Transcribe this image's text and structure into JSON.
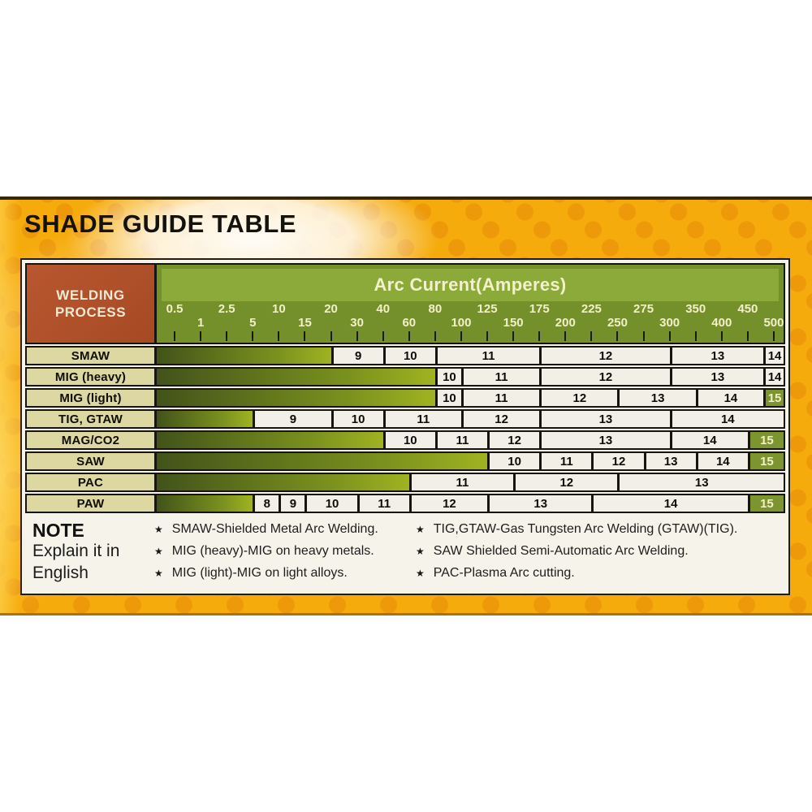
{
  "title": "SHADE GUIDE TABLE",
  "chart_data": {
    "type": "table",
    "title": "SHADE GUIDE TABLE",
    "process_header_lines": [
      "WELDING",
      "PROCESS"
    ],
    "x_axis": {
      "label": "Arc Current(Amperes)",
      "ticks": [
        0.5,
        1,
        2.5,
        5,
        10,
        15,
        20,
        30,
        40,
        60,
        80,
        100,
        125,
        150,
        175,
        200,
        225,
        250,
        275,
        300,
        350,
        400,
        450,
        500
      ],
      "scale": "evenly-spaced ticks",
      "range": [
        0.5,
        500
      ]
    },
    "rows": [
      {
        "process": "SMAW",
        "bar_to": 20,
        "segments": [
          {
            "shade": "9",
            "from": 20,
            "to": 40
          },
          {
            "shade": "10",
            "from": 40,
            "to": 80
          },
          {
            "shade": "11",
            "from": 80,
            "to": 175
          },
          {
            "shade": "12",
            "from": 175,
            "to": 300
          },
          {
            "shade": "13",
            "from": 300,
            "to": 480
          },
          {
            "shade": "14",
            "from": 480,
            "to": 500,
            "edge": true
          }
        ]
      },
      {
        "process": "MIG (heavy)",
        "bar_to": 80,
        "segments": [
          {
            "shade": "10",
            "from": 80,
            "to": 100
          },
          {
            "shade": "11",
            "from": 100,
            "to": 175
          },
          {
            "shade": "12",
            "from": 175,
            "to": 300
          },
          {
            "shade": "13",
            "from": 300,
            "to": 480
          },
          {
            "shade": "14",
            "from": 480,
            "to": 500,
            "edge": true
          }
        ]
      },
      {
        "process": "MIG (light)",
        "bar_to": 80,
        "segments": [
          {
            "shade": "10",
            "from": 80,
            "to": 100
          },
          {
            "shade": "11",
            "from": 100,
            "to": 175
          },
          {
            "shade": "12",
            "from": 175,
            "to": 250
          },
          {
            "shade": "13",
            "from": 250,
            "to": 350
          },
          {
            "shade": "14",
            "from": 350,
            "to": 480
          },
          {
            "shade": "15",
            "from": 480,
            "to": 500,
            "edge": true,
            "green": true
          }
        ]
      },
      {
        "process": "TIG, GTAW",
        "bar_to": 5,
        "segments": [
          {
            "shade": "9",
            "from": 5,
            "to": 20
          },
          {
            "shade": "10",
            "from": 20,
            "to": 40
          },
          {
            "shade": "11",
            "from": 40,
            "to": 100
          },
          {
            "shade": "12",
            "from": 100,
            "to": 175
          },
          {
            "shade": "13",
            "from": 175,
            "to": 300
          },
          {
            "shade": "14",
            "from": 300,
            "to": 500,
            "edge": true
          }
        ]
      },
      {
        "process": "MAG/CO2",
        "bar_to": 40,
        "segments": [
          {
            "shade": "10",
            "from": 40,
            "to": 80
          },
          {
            "shade": "11",
            "from": 80,
            "to": 125
          },
          {
            "shade": "12",
            "from": 125,
            "to": 175
          },
          {
            "shade": "13",
            "from": 175,
            "to": 300
          },
          {
            "shade": "14",
            "from": 300,
            "to": 450
          },
          {
            "shade": "15",
            "from": 450,
            "to": 500,
            "edge": true,
            "green": true
          }
        ]
      },
      {
        "process": "SAW",
        "bar_to": 125,
        "segments": [
          {
            "shade": "10",
            "from": 125,
            "to": 175
          },
          {
            "shade": "11",
            "from": 175,
            "to": 225
          },
          {
            "shade": "12",
            "from": 225,
            "to": 275
          },
          {
            "shade": "13",
            "from": 275,
            "to": 350
          },
          {
            "shade": "14",
            "from": 350,
            "to": 450
          },
          {
            "shade": "15",
            "from": 450,
            "to": 500,
            "edge": true,
            "green": true
          }
        ]
      },
      {
        "process": "PAC",
        "bar_to": 60,
        "segments": [
          {
            "shade": "11",
            "from": 60,
            "to": 150
          },
          {
            "shade": "12",
            "from": 150,
            "to": 250
          },
          {
            "shade": "13",
            "from": 250,
            "to": 500,
            "edge": true
          }
        ]
      },
      {
        "process": "PAW",
        "bar_to": 5,
        "segments": [
          {
            "shade": "8",
            "from": 5,
            "to": 10
          },
          {
            "shade": "9",
            "from": 10,
            "to": 15
          },
          {
            "shade": "10",
            "from": 15,
            "to": 30
          },
          {
            "shade": "11",
            "from": 30,
            "to": 60
          },
          {
            "shade": "12",
            "from": 60,
            "to": 125
          },
          {
            "shade": "13",
            "from": 125,
            "to": 225
          },
          {
            "shade": "14",
            "from": 225,
            "to": 450
          },
          {
            "shade": "15",
            "from": 450,
            "to": 500,
            "edge": true,
            "green": true
          }
        ]
      }
    ]
  },
  "notes": {
    "heading": "NOTE",
    "sub_lines": [
      "Explain it in",
      "English"
    ],
    "bullet": "★",
    "columns": [
      [
        "SMAW-Shielded Metal Arc Welding.",
        "MIG (heavy)-MIG on heavy metals.",
        "MIG (light)-MIG on light alloys."
      ],
      [
        "TIG,GTAW-Gas Tungsten Arc Welding (GTAW)(TIG).",
        "SAW Shielded Semi-Automatic Arc Welding.",
        "PAC-Plasma Arc cutting."
      ]
    ]
  },
  "colors": {
    "panel_orange": "#f6ab0c",
    "dot_orange": "#e78e08",
    "card_bg": "#f6f4ea",
    "process_header_bg": "#b0502a",
    "green_header": "#74902a",
    "green_band": "#8caa3a",
    "row_label_bg": "#ddd7a2",
    "bar_gradient_dark": "#42531a",
    "bar_gradient_light": "#9fb321",
    "shade15_cell": "#7d9530",
    "cell_bg": "#f2f0e6",
    "border": "#181410",
    "pale_text": "#f3efc8"
  }
}
